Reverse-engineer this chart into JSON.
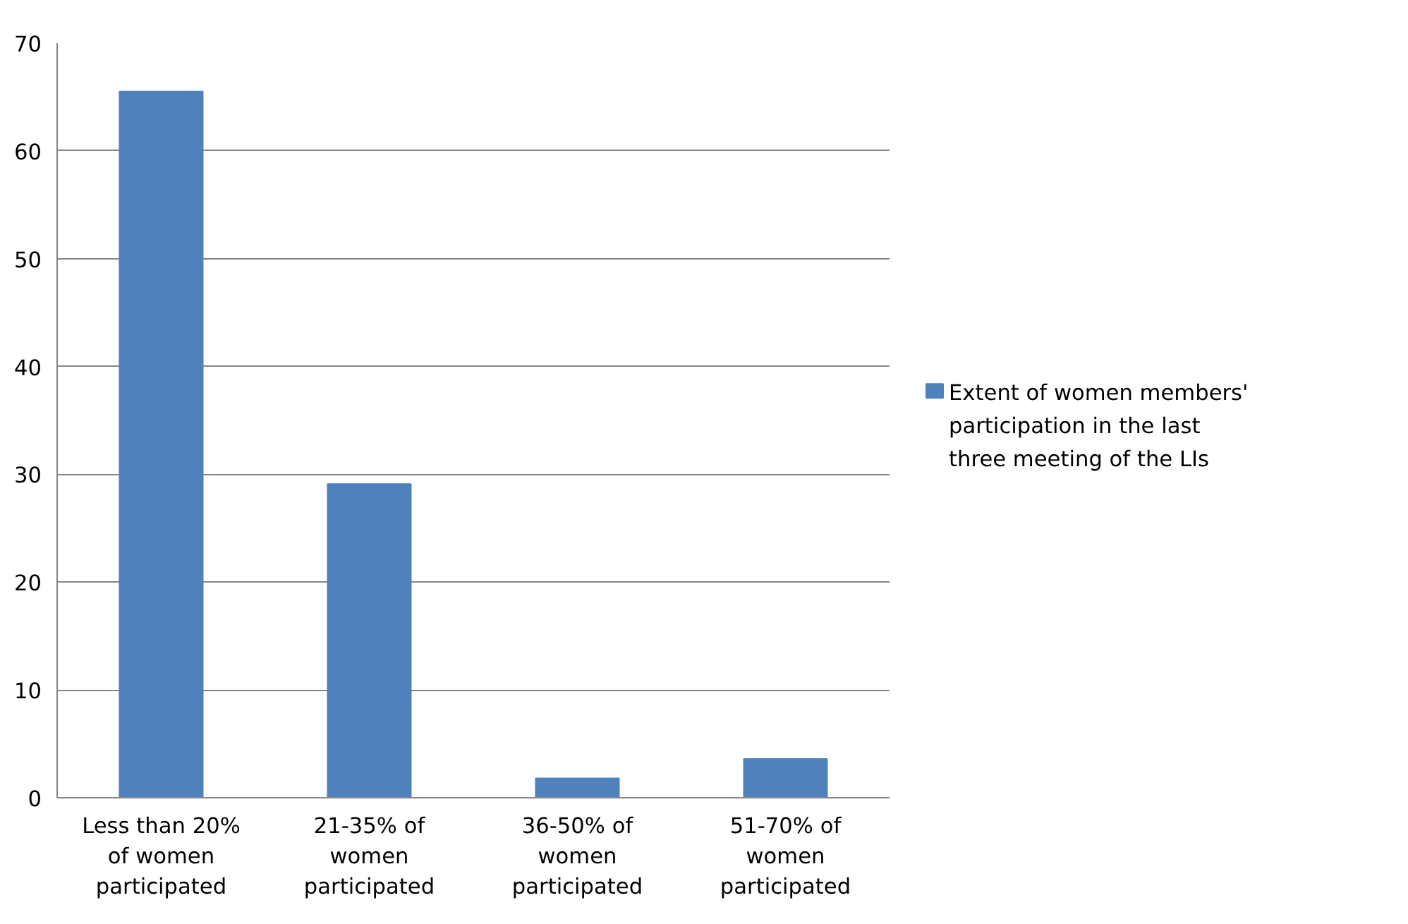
{
  "chart_data": {
    "type": "bar",
    "categories": [
      "Less than 20% of women participated",
      "21-35% of women participated",
      "36-50% of women participated",
      "51-70% of women participated"
    ],
    "series": [
      {
        "name": "Extent of women members' participation in the last three meeting of the LIs",
        "color": "#4f81bd",
        "values": [
          65.5,
          29.1,
          1.8,
          3.6
        ]
      }
    ],
    "ylim": [
      0,
      70
    ],
    "yticks": [
      0,
      10,
      20,
      30,
      40,
      50,
      60,
      70
    ],
    "grid": "y",
    "legend": "right"
  }
}
